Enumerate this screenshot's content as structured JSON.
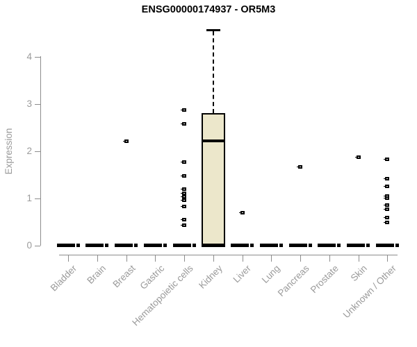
{
  "chart_data": {
    "type": "boxplot",
    "title": "ENSG00000174937 - OR5M3",
    "ylabel": "Expression",
    "xlabel": "",
    "ylim": [
      0,
      4.6
    ],
    "yticks": [
      0,
      1,
      2,
      3,
      4
    ],
    "grid": false,
    "legend": "none",
    "categories": [
      "Bladder",
      "Brain",
      "Breast",
      "Gastric",
      "Hematopoietic cells",
      "Kidney",
      "Liver",
      "Lung",
      "Pancreas",
      "Prostate",
      "Skin",
      "Unknown / Other"
    ],
    "series": [
      {
        "category": "Bladder",
        "median": 0,
        "q1": 0,
        "q3": 0,
        "whisker_low": 0,
        "whisker_high": 0,
        "outliers": []
      },
      {
        "category": "Brain",
        "median": 0,
        "q1": 0,
        "q3": 0,
        "whisker_low": 0,
        "whisker_high": 0,
        "outliers": []
      },
      {
        "category": "Breast",
        "median": 0,
        "q1": 0,
        "q3": 0,
        "whisker_low": 0,
        "whisker_high": 0,
        "outliers": [
          2.21
        ]
      },
      {
        "category": "Gastric",
        "median": 0,
        "q1": 0,
        "q3": 0,
        "whisker_low": 0,
        "whisker_high": 0,
        "outliers": []
      },
      {
        "category": "Hematopoietic cells",
        "median": 0,
        "q1": 0,
        "q3": 0,
        "whisker_low": 0,
        "whisker_high": 0,
        "outliers": [
          2.87,
          2.57,
          1.76,
          1.47,
          1.19,
          1.1,
          1.03,
          0.96,
          0.82,
          0.54,
          0.43
        ]
      },
      {
        "category": "Kidney",
        "median": 2.22,
        "q1": 0,
        "q3": 2.8,
        "whisker_low": 0,
        "whisker_high": 4.57,
        "outliers": []
      },
      {
        "category": "Liver",
        "median": 0,
        "q1": 0,
        "q3": 0,
        "whisker_low": 0,
        "whisker_high": 0,
        "outliers": [
          0.69
        ]
      },
      {
        "category": "Lung",
        "median": 0,
        "q1": 0,
        "q3": 0,
        "whisker_low": 0,
        "whisker_high": 0,
        "outliers": []
      },
      {
        "category": "Pancreas",
        "median": 0,
        "q1": 0,
        "q3": 0,
        "whisker_low": 0,
        "whisker_high": 0,
        "outliers": [
          1.66
        ]
      },
      {
        "category": "Prostate",
        "median": 0,
        "q1": 0,
        "q3": 0,
        "whisker_low": 0,
        "whisker_high": 0,
        "outliers": []
      },
      {
        "category": "Skin",
        "median": 0,
        "q1": 0,
        "q3": 0,
        "whisker_low": 0,
        "whisker_high": 0,
        "outliers": [
          1.87
        ]
      },
      {
        "category": "Unknown / Other",
        "median": 0,
        "q1": 0,
        "q3": 0,
        "whisker_low": 0,
        "whisker_high": 0,
        "outliers": [
          1.83,
          1.41,
          1.25,
          1.04,
          1.0,
          0.86,
          0.77,
          0.59,
          0.48
        ]
      }
    ],
    "colors": {
      "background": "#ffffff",
      "box_fill": "#ece7cb",
      "box_border": "#000000",
      "median": "#000000",
      "outlier": "#000000",
      "axis_line": "#8c8c8c",
      "tick_label": "#9a9a9a",
      "title": "#000000"
    }
  }
}
